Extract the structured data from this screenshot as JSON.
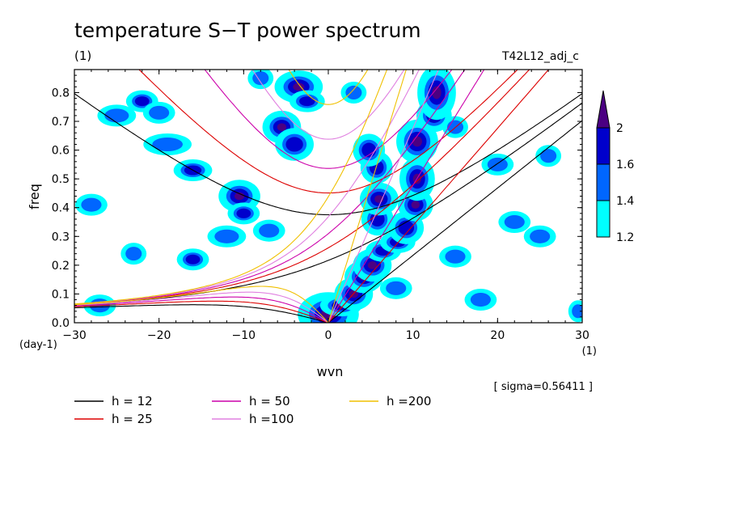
{
  "chart_data": {
    "type": "contour",
    "title": "temperature S−T power spectrum",
    "subtitle_units": "(1)",
    "run_label": "T42L12_adj_c",
    "xlabel": "wvn",
    "ylabel": "freq",
    "x_unit_label": "(1)",
    "y_unit_label": "(day-1)",
    "sigma_label": "[ sigma=0.56411 ]",
    "xlim": [
      -30,
      30
    ],
    "ylim": [
      0,
      0.88
    ],
    "x_ticks": [
      -30,
      -20,
      -10,
      0,
      10,
      20,
      30
    ],
    "x_tick_labels": [
      "−30",
      "−20",
      "−10",
      "0",
      "10",
      "20",
      "30"
    ],
    "y_ticks": [
      0,
      0.1,
      0.2,
      0.3,
      0.4,
      0.5,
      0.6,
      0.7,
      0.8
    ],
    "y_tick_labels": [
      "0.0",
      "0.1",
      "0.2",
      "0.3",
      "0.4",
      "0.5",
      "0.6",
      "0.7",
      "0.8"
    ],
    "colorbar": {
      "levels": [
        1.2,
        1.4,
        1.6,
        2
      ],
      "level_labels": [
        "1.2",
        "1.4",
        "1.6",
        "2"
      ],
      "colors": [
        "#00ffff",
        "#0066ff",
        "#0000cc",
        "#4b0082"
      ]
    },
    "dispersion_curves": [
      {
        "label": "h = 12",
        "h": 12,
        "color": "#000000"
      },
      {
        "label": "h = 25",
        "h": 25,
        "color": "#dd0000"
      },
      {
        "label": "h = 50",
        "h": 50,
        "color": "#cc00aa"
      },
      {
        "label": "h =100",
        "h": 100,
        "color": "#e080e0"
      },
      {
        "label": "h =200",
        "h": 200,
        "color": "#f0c000"
      }
    ],
    "power_blobs": [
      [
        0,
        0.03,
        1.9,
        0.04,
        2
      ],
      [
        1.5,
        0.06,
        1.3,
        0.02,
        2
      ],
      [
        3,
        0.1,
        1.2,
        0.03,
        2
      ],
      [
        4.2,
        0.16,
        1.2,
        0.03,
        2
      ],
      [
        5.2,
        0.2,
        1.2,
        0.03,
        2
      ],
      [
        6.5,
        0.25,
        1.1,
        0.02,
        1.6
      ],
      [
        8.2,
        0.28,
        1.1,
        0.02,
        1.6
      ],
      [
        9.2,
        0.33,
        1.1,
        0.03,
        1.6
      ],
      [
        10.3,
        0.41,
        1.1,
        0.03,
        2
      ],
      [
        10.5,
        0.5,
        1.1,
        0.04,
        2
      ],
      [
        10.5,
        0.63,
        1.3,
        0.04,
        2
      ],
      [
        12.5,
        0.72,
        1.1,
        0.03,
        2
      ],
      [
        12.8,
        0.8,
        1.2,
        0.05,
        2
      ],
      [
        5.8,
        0.36,
        1.0,
        0.03,
        1.6
      ],
      [
        6,
        0.43,
        1.2,
        0.03,
        2
      ],
      [
        5.7,
        0.54,
        1.0,
        0.03,
        1.6
      ],
      [
        4.8,
        0.6,
        1.0,
        0.03,
        1.6
      ],
      [
        -5.5,
        0.68,
        1.2,
        0.03,
        2
      ],
      [
        -4,
        0.62,
        1.2,
        0.03,
        1.6
      ],
      [
        -3.5,
        0.82,
        1.5,
        0.03,
        2
      ],
      [
        -2.5,
        0.77,
        1.1,
        0.02,
        1.6
      ],
      [
        -10.5,
        0.44,
        1.3,
        0.03,
        2
      ],
      [
        -10,
        0.38,
        1.0,
        0.02,
        1.6
      ],
      [
        -16,
        0.53,
        1.2,
        0.02,
        1.6
      ],
      [
        -22,
        0.77,
        1.0,
        0.02,
        1.6
      ],
      [
        -16,
        0.22,
        1.0,
        0.02,
        1.6
      ],
      [
        -20,
        0.73,
        1.0,
        0.02,
        1.4
      ],
      [
        -28,
        0.41,
        1.0,
        0.02,
        1.4
      ],
      [
        -25,
        0.72,
        1.2,
        0.02,
        1.4
      ],
      [
        -19,
        0.62,
        1.5,
        0.02,
        1.4
      ],
      [
        -12,
        0.3,
        1.2,
        0.02,
        1.4
      ],
      [
        -7,
        0.32,
        1.0,
        0.02,
        1.4
      ],
      [
        8,
        0.12,
        1.0,
        0.02,
        1.4
      ],
      [
        15,
        0.23,
        1.0,
        0.02,
        1.4
      ],
      [
        18,
        0.08,
        1.0,
        0.02,
        1.4
      ],
      [
        22,
        0.35,
        1.0,
        0.02,
        1.4
      ],
      [
        25,
        0.3,
        1.0,
        0.02,
        1.4
      ],
      [
        29.5,
        0.04,
        0.6,
        0.02,
        1.4
      ],
      [
        20,
        0.55,
        1.0,
        0.02,
        1.4
      ],
      [
        -27,
        0.06,
        1.0,
        0.02,
        1.4
      ],
      [
        -23,
        0.24,
        0.8,
        0.02,
        1.4
      ],
      [
        3,
        0.8,
        0.8,
        0.02,
        1.4
      ],
      [
        -8,
        0.85,
        0.8,
        0.02,
        1.4
      ],
      [
        26,
        0.58,
        0.8,
        0.02,
        1.4
      ],
      [
        15,
        0.68,
        0.8,
        0.02,
        1.4
      ]
    ]
  }
}
